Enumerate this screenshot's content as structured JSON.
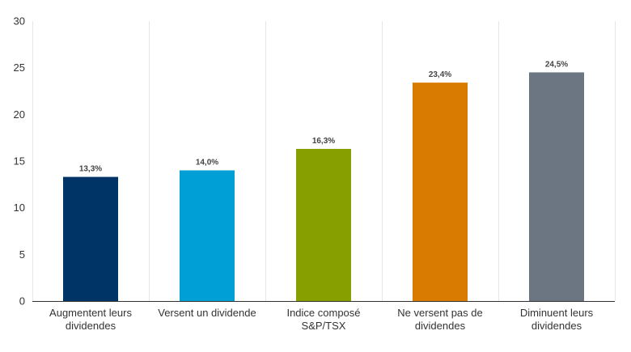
{
  "chart_data": {
    "type": "bar",
    "title": "",
    "xlabel": "",
    "ylabel": "",
    "categories": [
      [
        "Augmentent leurs",
        "dividendes"
      ],
      [
        "Versent un dividende"
      ],
      [
        "Indice composé",
        "S&P/TSX"
      ],
      [
        "Ne versent pas de",
        "dividendes"
      ],
      [
        "Diminuent leurs",
        "dividendes"
      ]
    ],
    "values": [
      13.3,
      14.0,
      16.3,
      23.4,
      24.5
    ],
    "value_labels": [
      "13,3%",
      "14,0%",
      "16,3%",
      "23,4%",
      "24,5%"
    ],
    "colors": [
      "#003366",
      "#00a0d6",
      "#87a000",
      "#d97b00",
      "#6b7682"
    ],
    "ylim": [
      0,
      30
    ],
    "yticks": [
      0,
      5,
      10,
      15,
      20,
      25,
      30
    ],
    "grid": "vertical-separators",
    "legend": "none"
  }
}
